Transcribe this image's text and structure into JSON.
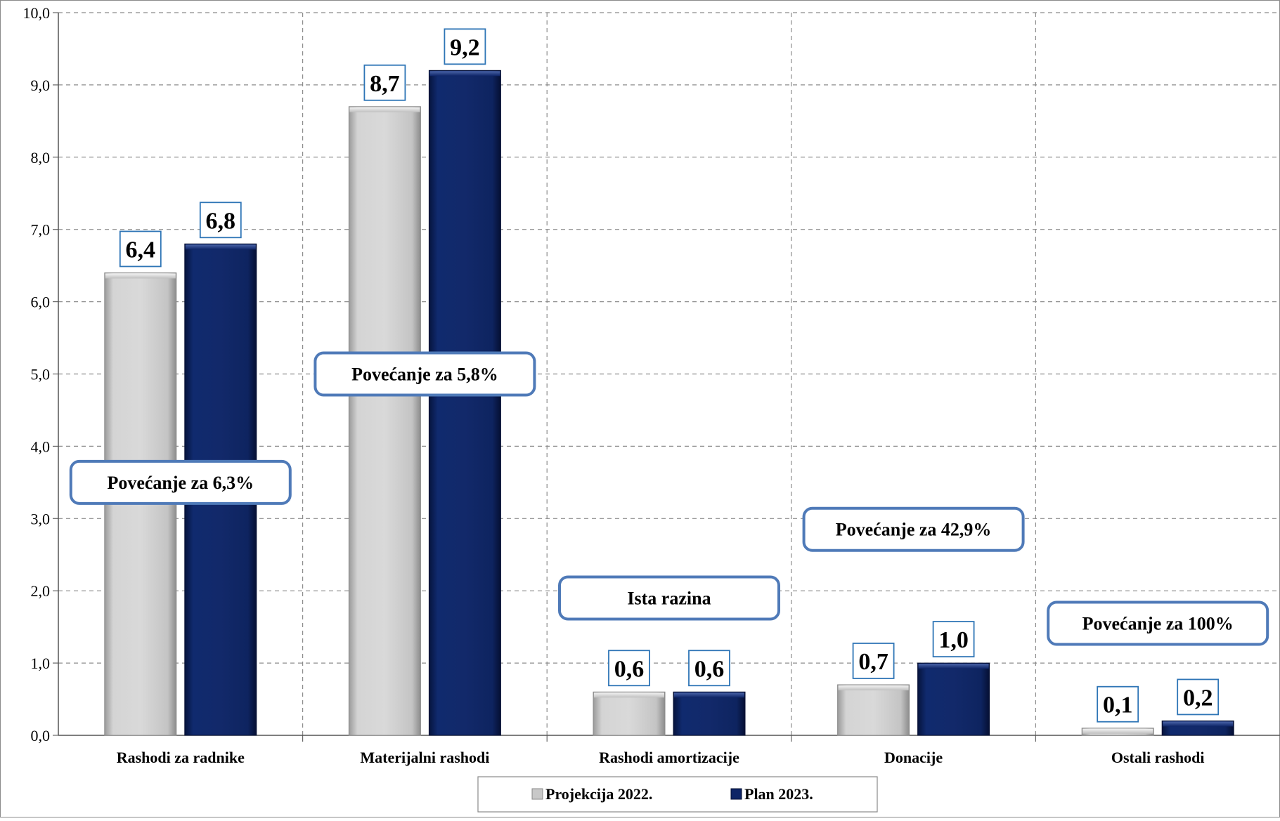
{
  "chart_data": {
    "type": "bar",
    "title": "",
    "xlabel": "",
    "ylabel": "",
    "ylim": [
      0,
      10
    ],
    "ytick_step": 1,
    "ytick_labels": [
      "0,0",
      "1,0",
      "2,0",
      "3,0",
      "4,0",
      "5,0",
      "6,0",
      "7,0",
      "8,0",
      "9,0",
      "10,0"
    ],
    "grid": true,
    "legend_position": "bottom",
    "categories": [
      "Rashodi za radnike",
      "Materijalni rashodi",
      "Rashodi amortizacije",
      "Donacije",
      "Ostali rashodi"
    ],
    "series": [
      {
        "name": "Projekcija 2022.",
        "color": "#c8c8c8",
        "values": [
          6.4,
          8.7,
          0.6,
          0.7,
          0.1
        ],
        "labels": [
          "6,4",
          "8,7",
          "0,6",
          "0,7",
          "0,1"
        ]
      },
      {
        "name": "Plan 2023.",
        "color": "#0d2466",
        "values": [
          6.8,
          9.2,
          0.6,
          1.0,
          0.2
        ],
        "labels": [
          "6,8",
          "9,2",
          "0,6",
          "1,0",
          "0,2"
        ]
      }
    ],
    "annotations": [
      {
        "category_index": 0,
        "text": "Povećanje za 6,3%",
        "y": 3.5
      },
      {
        "category_index": 1,
        "text": "Povećanje za 5,8%",
        "y": 5.0
      },
      {
        "category_index": 2,
        "text": "Ista razina",
        "y": 1.9
      },
      {
        "category_index": 3,
        "text": "Povećanje za 42,9%",
        "y": 2.85
      },
      {
        "category_index": 4,
        "text": "Povećanje za 100%",
        "y": 1.55
      }
    ],
    "annotation_border_color": "#4f7ab8",
    "value_label_border_color": "#2e75b6"
  }
}
